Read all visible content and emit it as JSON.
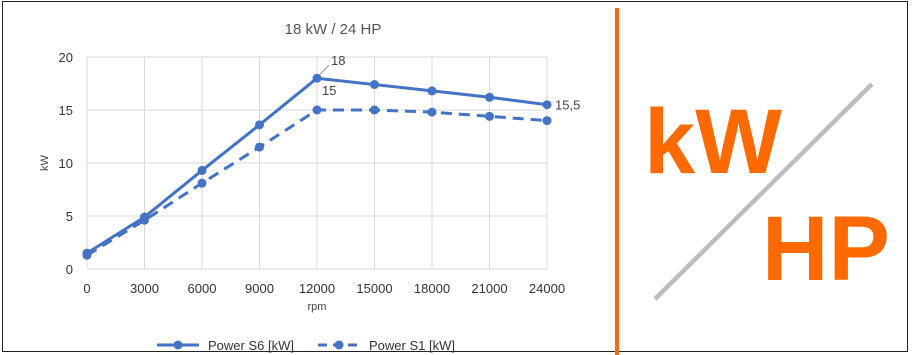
{
  "chart_data": {
    "type": "line",
    "title": "18 kW / 24 HP",
    "xlabel": "rpm",
    "ylabel": "kW",
    "x": [
      0,
      3000,
      6000,
      9000,
      12000,
      15000,
      18000,
      21000,
      24000
    ],
    "x_tick_labels": [
      "0",
      "3000",
      "6000",
      "9000",
      "12000",
      "15000",
      "18000",
      "21000",
      "24000"
    ],
    "ylim": [
      0,
      20
    ],
    "y_ticks": [
      0,
      5,
      10,
      15,
      20
    ],
    "grid": true,
    "legend_position": "bottom",
    "series": [
      {
        "name": "Power S6 [kW]",
        "style": "solid",
        "color": "#4472C4",
        "values": [
          1.5,
          4.9,
          9.3,
          13.6,
          18.0,
          17.4,
          16.8,
          16.2,
          15.5
        ]
      },
      {
        "name": "Power S1 [kW]",
        "style": "dashed",
        "color": "#4472C4",
        "values": [
          1.3,
          4.6,
          8.1,
          11.5,
          15.0,
          15.0,
          14.8,
          14.4,
          14.0
        ]
      }
    ],
    "annotations": [
      {
        "text": "18",
        "series": 0,
        "index": 4
      },
      {
        "text": "15",
        "series": 1,
        "index": 4
      },
      {
        "text": "15,5",
        "series": 0,
        "index": 8
      }
    ]
  },
  "logo": {
    "top_text": "kW",
    "bottom_text": "HP",
    "text_color": "#FF6A00",
    "slash_color": "#BDBDBD"
  },
  "colors": {
    "divider": "#F26A1B",
    "gridline": "#D9D9D9"
  }
}
